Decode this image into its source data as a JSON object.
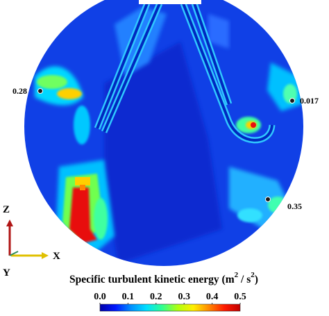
{
  "chart_data": {
    "type": "heatmap",
    "title": "",
    "colorbar": {
      "label": "Specific turbulent kinetic energy (m",
      "label_sup1": "2",
      "label_mid": " / s",
      "label_sup2": "2",
      "label_end": ")",
      "ticks": [
        "0.0",
        "0.1",
        "0.2",
        "0.3",
        "0.4",
        "0.5"
      ],
      "range": [
        0.0,
        0.5
      ],
      "colors": [
        "#0000a8",
        "#0018ff",
        "#0090ff",
        "#00e0ff",
        "#30ff90",
        "#b0ff10",
        "#ffee00",
        "#ff8800",
        "#ff1a00",
        "#c00000"
      ]
    },
    "monitor_points": [
      {
        "label": "0.28",
        "value": 0.28,
        "side": "left"
      },
      {
        "label": "0.017",
        "value": 0.017,
        "side": "right"
      },
      {
        "label": "0.35",
        "value": 0.35,
        "side": "right"
      }
    ],
    "axes_triad": {
      "z": "Z",
      "x": "X",
      "y": "Y"
    },
    "colors": {
      "background_field": "#1040e6",
      "pipe_edge": "#30c8ff",
      "axis_z": "#b01515",
      "axis_x": "#e0c000",
      "axis_y": "#2e8b57"
    }
  }
}
